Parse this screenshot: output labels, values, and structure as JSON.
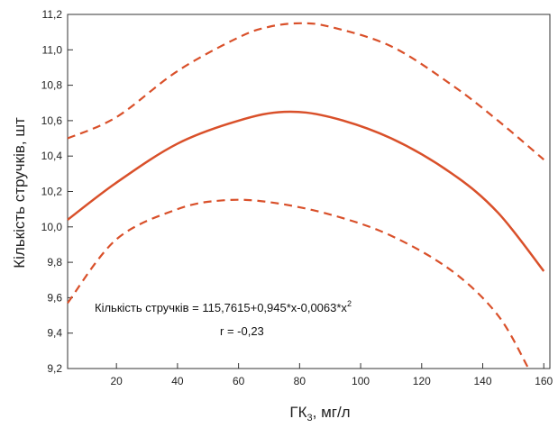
{
  "chart_data": {
    "type": "line",
    "xlabel": "ГК",
    "xlabel_sub": "3",
    "xlabel_unit": ", мг/л",
    "ylabel": "Кількість стручків, шт",
    "xlim": [
      4,
      162
    ],
    "ylim": [
      9.2,
      11.2
    ],
    "xticks": [
      20,
      40,
      60,
      80,
      100,
      120,
      140,
      160
    ],
    "yticks": [
      9.2,
      9.4,
      9.6,
      9.8,
      10.0,
      10.2,
      10.4,
      10.6,
      10.8,
      11.0,
      11.2
    ],
    "xtick_labels": [
      "20",
      "40",
      "60",
      "80",
      "100",
      "120",
      "140",
      "160"
    ],
    "ytick_labels": [
      "9,2",
      "9,4",
      "9,6",
      "9,8",
      "10,0",
      "10,2",
      "10,4",
      "10,6",
      "10,8",
      "11,0",
      "11,2"
    ],
    "grid": false,
    "colors": {
      "series": "#d9502a",
      "axis": "#333333"
    },
    "series": [
      {
        "style": "solid",
        "x": [
          4,
          20,
          40,
          60,
          75,
          90,
          110,
          130,
          145,
          160
        ],
        "y": [
          10.04,
          10.25,
          10.47,
          10.6,
          10.65,
          10.62,
          10.5,
          10.3,
          10.08,
          9.75
        ]
      },
      {
        "style": "dashed",
        "x": [
          4,
          20,
          40,
          60,
          70,
          80,
          90,
          110,
          130,
          145,
          160
        ],
        "y": [
          10.5,
          10.62,
          10.88,
          11.07,
          11.13,
          11.15,
          11.13,
          11.02,
          10.8,
          10.6,
          10.38
        ]
      },
      {
        "style": "dashed",
        "x": [
          4,
          20,
          40,
          55,
          70,
          90,
          110,
          130,
          145,
          155
        ],
        "y": [
          9.57,
          9.93,
          10.1,
          10.15,
          10.14,
          10.07,
          9.95,
          9.75,
          9.5,
          9.2
        ]
      }
    ],
    "annotations": {
      "equation_main": "Кількість стручків = 115,7615+0,945*x-0,0063*x",
      "equation_sup": "2",
      "r_value": "r = -0,23"
    }
  }
}
